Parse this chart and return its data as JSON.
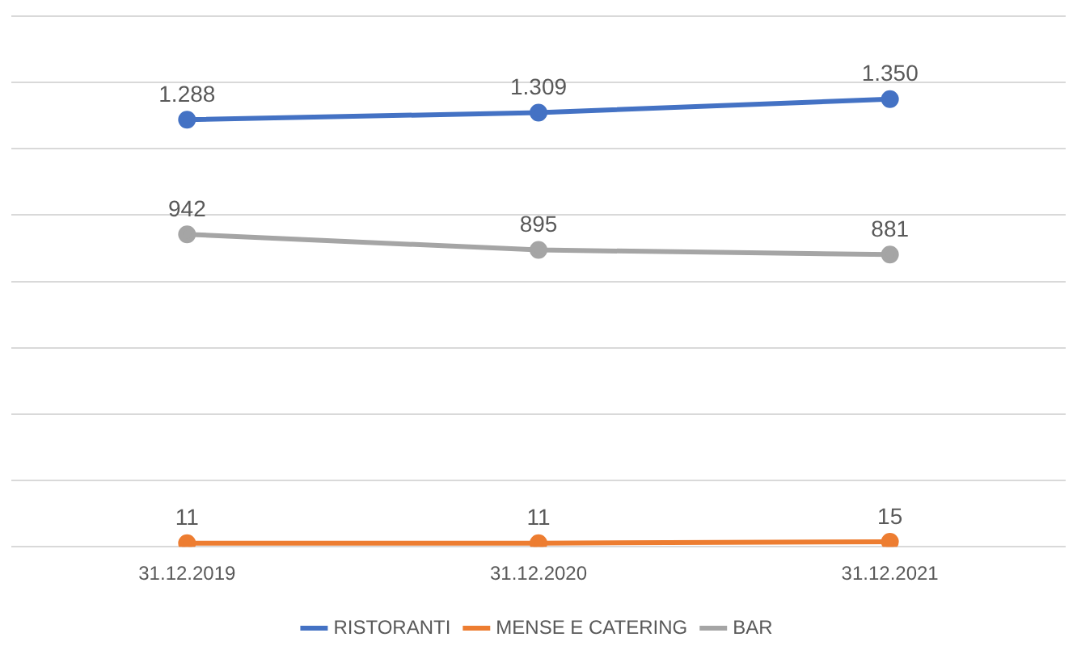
{
  "chart_data": {
    "type": "line",
    "categories": [
      "31.12.2019",
      "31.12.2020",
      "31.12.2021"
    ],
    "series": [
      {
        "name": "RISTORANTI",
        "color": "#4472c4",
        "values": [
          1288,
          1309,
          1350
        ],
        "value_labels": [
          "1.288",
          "1.309",
          "1.350"
        ]
      },
      {
        "name": "MENSE E CATERING",
        "color": "#ed7d31",
        "values": [
          11,
          11,
          15
        ],
        "value_labels": [
          "11",
          "11",
          "15"
        ]
      },
      {
        "name": "BAR",
        "color": "#a5a5a5",
        "values": [
          942,
          895,
          881
        ],
        "value_labels": [
          "942",
          "895",
          "881"
        ]
      }
    ],
    "ylim": [
      0,
      1600
    ],
    "yticks": [
      {
        "value": 0,
        "label": null
      },
      {
        "value": 200,
        "label": null
      },
      {
        "value": 400,
        "label": null
      },
      {
        "value": 600,
        "label": null
      },
      {
        "value": 800,
        "label": null
      },
      {
        "value": 1000,
        "label": null
      },
      {
        "value": 1200,
        "label": null
      },
      {
        "value": 1400,
        "label": null
      },
      {
        "value": 1600,
        "label": null
      }
    ],
    "grid": "y",
    "legend": "bottom",
    "marker": "circle",
    "line_style": "solid",
    "tick_labels": "x"
  }
}
